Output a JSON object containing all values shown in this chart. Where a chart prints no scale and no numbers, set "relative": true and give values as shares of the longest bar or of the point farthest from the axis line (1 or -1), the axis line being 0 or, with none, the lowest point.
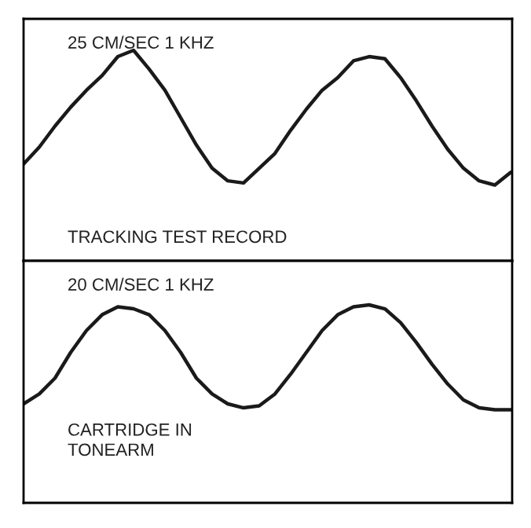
{
  "chart_data": [
    {
      "type": "line",
      "relative": true,
      "categories": [
        null,
        null,
        null,
        null,
        null,
        null,
        null,
        null,
        null,
        null,
        null,
        null,
        null,
        null,
        null,
        null,
        null,
        null,
        null,
        null,
        null,
        null,
        null,
        null,
        null,
        null,
        null,
        null,
        null,
        null,
        null,
        null
      ],
      "series": [
        {
          "color": "#1a1a1a",
          "values": [
            0.46,
            0.54,
            0.64,
            0.73,
            0.81,
            0.88,
            0.97,
            1.0,
            0.91,
            0.81,
            0.68,
            0.55,
            0.44,
            0.38,
            0.37,
            0.44,
            0.51,
            0.62,
            0.72,
            0.81,
            0.87,
            0.95,
            0.97,
            0.96,
            0.87,
            0.76,
            0.64,
            0.53,
            0.44,
            0.38,
            0.36,
            0.42
          ]
        }
      ],
      "annotations": [
        "25 CM/SEC 1 KHZ",
        "TRACKING TEST RECORD"
      ]
    },
    {
      "type": "line",
      "relative": true,
      "categories": [
        null,
        null,
        null,
        null,
        null,
        null,
        null,
        null,
        null,
        null,
        null,
        null,
        null,
        null,
        null,
        null,
        null,
        null,
        null,
        null,
        null,
        null,
        null,
        null,
        null,
        null,
        null,
        null,
        null,
        null,
        null,
        null
      ],
      "series": [
        {
          "color": "#1a1a1a",
          "values": [
            0.5,
            0.55,
            0.63,
            0.76,
            0.87,
            0.95,
            0.99,
            0.98,
            0.95,
            0.87,
            0.76,
            0.63,
            0.55,
            0.5,
            0.48,
            0.49,
            0.55,
            0.65,
            0.76,
            0.87,
            0.95,
            0.99,
            1.0,
            0.98,
            0.91,
            0.81,
            0.7,
            0.6,
            0.52,
            0.48,
            0.47,
            0.47
          ]
        }
      ],
      "annotations": [
        "20 CM/SEC 1 KHZ",
        "CARTRIDGE IN\nTONEARM"
      ]
    }
  ]
}
